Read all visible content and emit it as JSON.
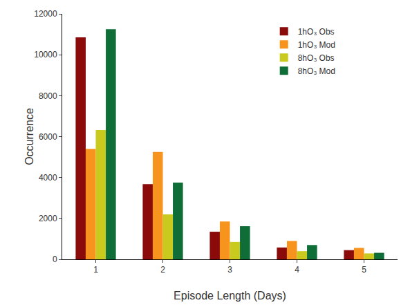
{
  "chart_data": {
    "type": "bar",
    "x_label": "Episode Length (Days)",
    "y_label": "Occurrence",
    "categories": [
      "1",
      "2",
      "3",
      "4",
      "5"
    ],
    "series": [
      {
        "name": "1hO₃ Obs",
        "color": "#8b0a0a",
        "values": [
          10850,
          3680,
          1350,
          580,
          450
        ]
      },
      {
        "name": "1hO₃ Mod",
        "color": "#f7941d",
        "values": [
          5400,
          5250,
          1850,
          900,
          560
        ]
      },
      {
        "name": "8hO₃ Obs",
        "color": "#c9c91e",
        "values": [
          6320,
          2200,
          850,
          400,
          290
        ]
      },
      {
        "name": "8hO₃ Mod",
        "color": "#0f6e37",
        "values": [
          11250,
          3750,
          1620,
          700,
          320
        ]
      }
    ],
    "ylim": [
      0,
      12000
    ],
    "yticks": [
      0,
      2000,
      4000,
      6000,
      8000,
      10000,
      12000
    ],
    "grid": false,
    "legend": "upper right"
  }
}
